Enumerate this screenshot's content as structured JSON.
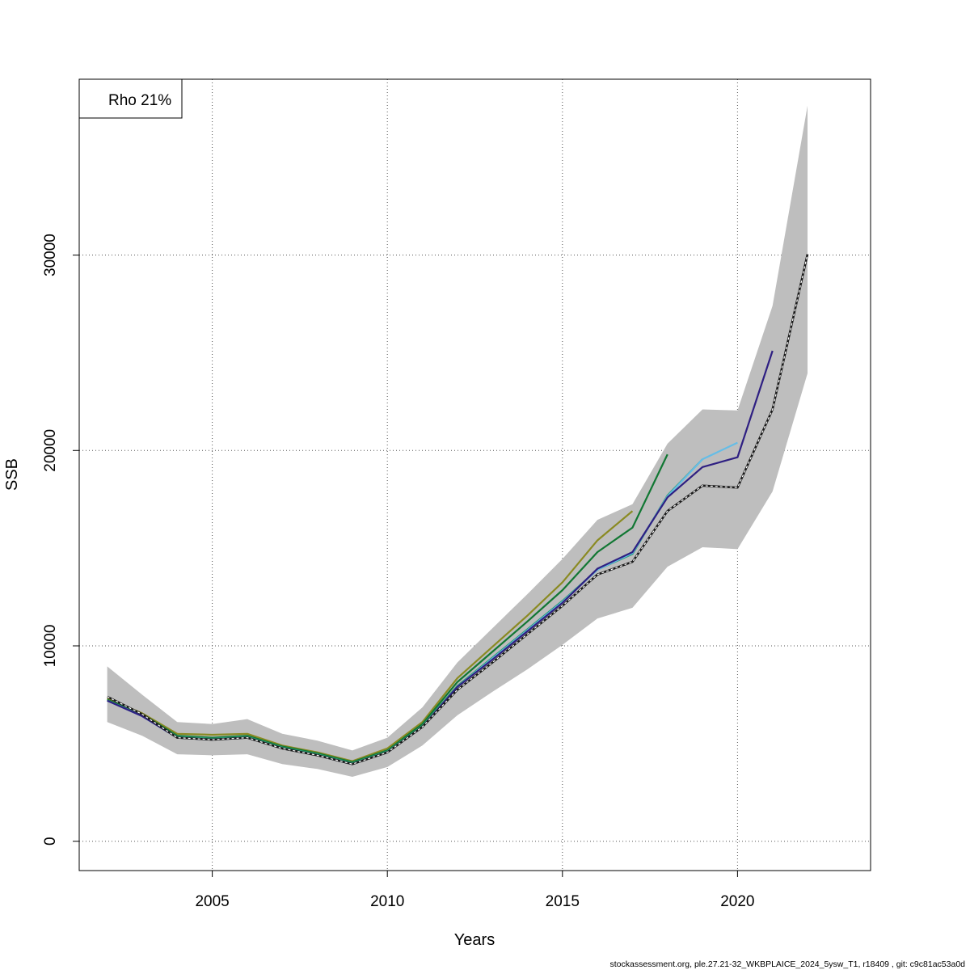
{
  "footer": "stockassessment.org, ple.27.21-32_WKBPLAICE_2024_5ysw_T1, r18409 , git: c9c81ac53a0d",
  "chart_data": {
    "type": "line",
    "title": "",
    "xlabel": "Years",
    "ylabel": "SSB",
    "legend_text": "Rho 21%",
    "legend_position": "top-left",
    "grid": true,
    "xlim": [
      2001.2,
      2023.8
    ],
    "ylim": [
      -1500,
      39000
    ],
    "xticks": [
      2005,
      2010,
      2015,
      2020
    ],
    "yticks": [
      0,
      10000,
      20000,
      30000
    ],
    "band_color": "#bebebe",
    "confidence_band": {
      "x": [
        2002,
        2003,
        2004,
        2005,
        2006,
        2007,
        2008,
        2009,
        2010,
        2011,
        2012,
        2013,
        2014,
        2015,
        2016,
        2017,
        2018,
        2019,
        2020,
        2021,
        2022
      ],
      "lower": [
        6100,
        5400,
        4450,
        4400,
        4450,
        3950,
        3700,
        3300,
        3800,
        4900,
        6450,
        7650,
        8800,
        10050,
        11400,
        11950,
        14050,
        15050,
        14950,
        17900,
        23950
      ],
      "upper": [
        8950,
        7500,
        6100,
        6000,
        6250,
        5500,
        5150,
        4650,
        5300,
        6850,
        9150,
        10900,
        12650,
        14450,
        16450,
        17250,
        20350,
        22100,
        22050,
        27400,
        37650
      ]
    },
    "series": [
      {
        "color": "#1a1a1a",
        "dashed": true,
        "x": [
          2002,
          2003,
          2004,
          2005,
          2006,
          2007,
          2008,
          2009,
          2010,
          2011,
          2012,
          2013,
          2014,
          2015,
          2016,
          2017,
          2018,
          2019,
          2020,
          2021,
          2022
        ],
        "values": [
          7400,
          6500,
          5300,
          5200,
          5300,
          4750,
          4400,
          3950,
          4550,
          5850,
          7750,
          9150,
          10600,
          12050,
          13650,
          14300,
          16900,
          18200,
          18100,
          22100,
          30050
        ]
      },
      {
        "color": "#2e1f82",
        "dashed": false,
        "x": [
          2002,
          2003,
          2004,
          2005,
          2006,
          2007,
          2008,
          2009,
          2010,
          2011,
          2012,
          2013,
          2014,
          2015,
          2016,
          2017,
          2018,
          2019,
          2020,
          2021
        ],
        "values": [
          7200,
          6400,
          5300,
          5200,
          5300,
          4750,
          4400,
          3950,
          4550,
          5850,
          7900,
          9300,
          10750,
          12200,
          13950,
          14800,
          17600,
          19150,
          19650,
          25100
        ]
      },
      {
        "color": "#66bde6",
        "dashed": false,
        "x": [
          2002,
          2003,
          2004,
          2005,
          2006,
          2007,
          2008,
          2009,
          2010,
          2011,
          2012,
          2013,
          2014,
          2015,
          2016,
          2017,
          2018,
          2019,
          2020
        ],
        "values": [
          7200,
          6400,
          5300,
          5200,
          5300,
          4750,
          4400,
          3950,
          4550,
          5850,
          7900,
          9350,
          10800,
          12250,
          13900,
          14750,
          17650,
          19550,
          20400
        ]
      },
      {
        "color": "#2b9a77",
        "dashed": false,
        "x": [
          2002,
          2003,
          2004,
          2005,
          2006,
          2007,
          2008,
          2009,
          2010,
          2011,
          2012,
          2013,
          2014,
          2015,
          2016,
          2017,
          2018,
          2019
        ],
        "values": [
          7200,
          6450,
          5350,
          5250,
          5350,
          4800,
          4450,
          4000,
          4600,
          5900,
          7950,
          9400,
          10850,
          12300,
          13900,
          14700,
          17700,
          19550
        ]
      },
      {
        "color": "#117733",
        "dashed": false,
        "x": [
          2002,
          2003,
          2004,
          2005,
          2006,
          2007,
          2008,
          2009,
          2010,
          2011,
          2012,
          2013,
          2014,
          2015,
          2016,
          2017,
          2018
        ],
        "values": [
          7250,
          6500,
          5400,
          5300,
          5400,
          4850,
          4500,
          4050,
          4650,
          6000,
          8150,
          9700,
          11250,
          12850,
          14800,
          16050,
          19800
        ]
      },
      {
        "color": "#8a8a22",
        "dashed": false,
        "x": [
          2002,
          2003,
          2004,
          2005,
          2006,
          2007,
          2008,
          2009,
          2010,
          2011,
          2012,
          2013,
          2014,
          2015,
          2016,
          2017
        ],
        "values": [
          7300,
          6550,
          5500,
          5450,
          5500,
          4900,
          4550,
          4100,
          4750,
          6100,
          8350,
          9950,
          11550,
          13250,
          15400,
          16900
        ]
      }
    ]
  }
}
